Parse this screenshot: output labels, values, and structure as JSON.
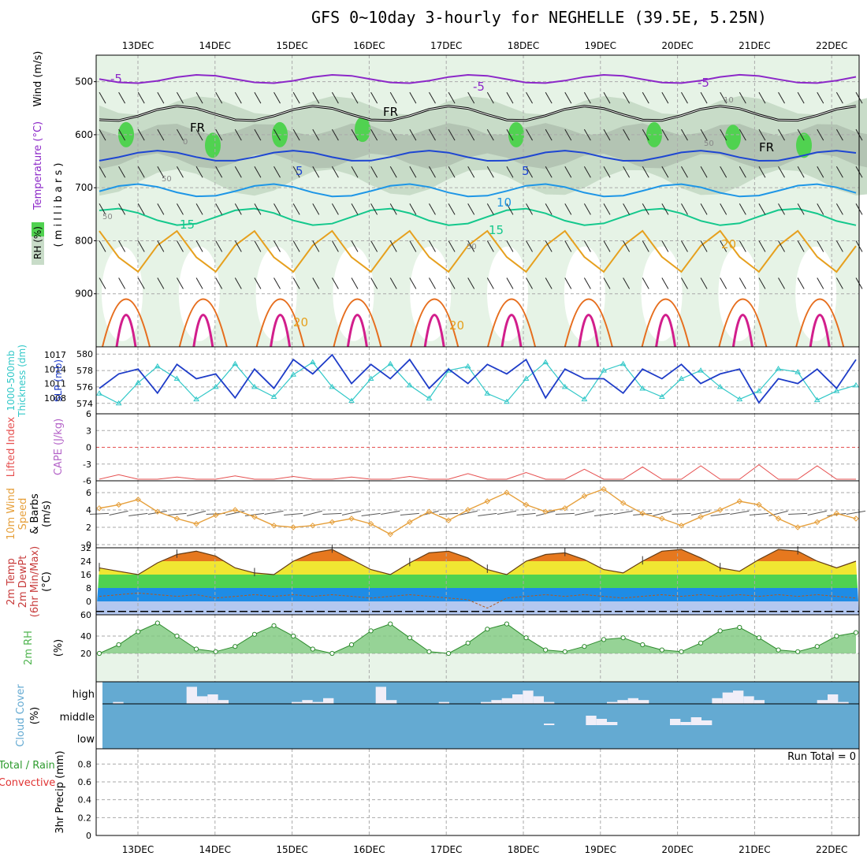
{
  "title": "GFS 0~10day 3-hourly for NEGHELLE (39.5E, 5.25N)",
  "colors": {
    "rh_light": "#e6f3e6",
    "rh_mid": "#c8dcc8",
    "rh_dark": "#a9b9a9",
    "rh_bright": "#50d250",
    "t_purple": "#8c28c8",
    "t_blue": "#1e46d2",
    "t_sky": "#1e96e6",
    "t_teal": "#14c88c",
    "t_gold": "#e6a01e",
    "t_orange": "#e66e1e",
    "t_magenta": "#d21e8c",
    "slp": "#1e3cc8",
    "thick": "#32c8c8",
    "li": "#e65050",
    "wind10": "#e6a03c",
    "rh2m": "#50b450",
    "cloud": "#64aad2",
    "grid": "#aaaaaa"
  },
  "chart_data": {
    "type": "meteogram",
    "time_axis": {
      "labels": [
        "13DEC",
        "14DEC",
        "15DEC",
        "16DEC",
        "17DEC",
        "18DEC",
        "19DEC",
        "20DEC",
        "21DEC",
        "22DEC"
      ]
    },
    "panels": [
      {
        "id": "upper_air",
        "ylabels": [
          "Wind (m/s)",
          "Temperature (°C)",
          "RH (%)",
          "( m i l l i b a r s )"
        ],
        "y_ticks": [
          500,
          600,
          700,
          800,
          900
        ],
        "ylim": [
          1000,
          450
        ],
        "contour_labels": [
          "-5",
          "-5",
          "-5",
          "5",
          "5",
          "10",
          "15",
          "15",
          "20",
          "20",
          "20",
          "FR",
          "FR",
          "FR",
          "50",
          "50",
          "50",
          "50",
          "0",
          "10"
        ],
        "temperature_isotherms": [
          {
            "name": "-5",
            "values": [
              -5,
              -5,
              -5,
              -5,
              -5,
              -5,
              -5,
              -5,
              -5,
              -5
            ]
          },
          {
            "name": "0",
            "values": [
              0,
              0,
              0,
              0,
              0,
              0,
              0,
              0,
              0,
              0
            ]
          },
          {
            "name": "5",
            "values": [
              5,
              5,
              5,
              5,
              5,
              5,
              5,
              5,
              5,
              5
            ]
          },
          {
            "name": "10",
            "values": [
              10,
              10,
              10,
              10,
              10,
              10,
              10,
              10,
              10,
              10
            ]
          },
          {
            "name": "15",
            "values": [
              15,
              15,
              15,
              15,
              15,
              15,
              15,
              15,
              15,
              15
            ]
          },
          {
            "name": "20",
            "values": [
              20,
              20,
              20,
              20,
              20,
              20,
              20,
              20,
              20,
              20
            ]
          }
        ]
      },
      {
        "id": "thickness_slp",
        "ylabels": [
          "1000-500mb",
          "Thickness (dm)",
          "SLP (mb)"
        ],
        "left_ticks": [
          574,
          576,
          578,
          580
        ],
        "right_ticks": [
          1008,
          1011,
          1014,
          1017
        ],
        "slp": [
          1010,
          1013,
          1014,
          1009,
          1015,
          1012,
          1013,
          1008,
          1014,
          1010,
          1016,
          1013,
          1017,
          1011,
          1015,
          1012,
          1016,
          1010,
          1014,
          1011,
          1015,
          1013,
          1016,
          1008,
          1014,
          1012,
          1012,
          1009,
          1014,
          1012,
          1015,
          1011,
          1013,
          1014,
          1007,
          1012,
          1011,
          1014,
          1010,
          1016
        ],
        "thickness": [
          575.2,
          574.0,
          576.5,
          578.5,
          577.0,
          574.5,
          576.0,
          578.8,
          576.0,
          574.8,
          577.5,
          579.0,
          576.0,
          574.3,
          577.0,
          578.8,
          576.2,
          574.6,
          578.0,
          578.5,
          575.2,
          574.2,
          577.0,
          579.0,
          576.0,
          574.5,
          578.0,
          578.8,
          575.8,
          574.8,
          577.0,
          578.0,
          576.0,
          574.5,
          575.5,
          578.2,
          577.8,
          574.4,
          575.5,
          576.2
        ]
      },
      {
        "id": "stability",
        "ylabels": [
          "Lifted Index",
          "CAPE (J/kg)"
        ],
        "y_ticks": [
          6,
          3,
          0,
          -3,
          -6
        ],
        "lifted_index": [
          6,
          5.2,
          6,
          6,
          5.6,
          6,
          6,
          5.4,
          6,
          6,
          5.5,
          6,
          6,
          5.6,
          6,
          6,
          5.5,
          6,
          6,
          5.0,
          6,
          6,
          4.8,
          6,
          6,
          4.2,
          6,
          6,
          3.8,
          6,
          6,
          3.6,
          6,
          6,
          3.4,
          6,
          6,
          3.6,
          6,
          6
        ]
      },
      {
        "id": "wind10m",
        "ylabels": [
          "10m Wind",
          "Speed",
          "& Barbs",
          "(m/s)"
        ],
        "y_ticks": [
          0,
          2,
          4,
          6
        ],
        "speed": [
          4.2,
          4.6,
          5.2,
          3.8,
          3.0,
          2.4,
          3.4,
          4.0,
          3.2,
          2.2,
          2.0,
          2.2,
          2.6,
          3.0,
          2.4,
          1.2,
          2.6,
          3.8,
          2.8,
          4.0,
          5.0,
          6.0,
          4.6,
          3.8,
          4.2,
          5.6,
          6.4,
          4.8,
          3.6,
          3.0,
          2.2,
          3.2,
          4.0,
          5.0,
          4.6,
          3.0,
          2.0,
          2.6,
          3.6,
          3.0
        ]
      },
      {
        "id": "temp2m",
        "ylabels": [
          "2m Temp",
          "2m DewPt",
          "(6hr Min/Max)",
          "(°C)"
        ],
        "y_ticks": [
          -8,
          0,
          8,
          16,
          24,
          32
        ],
        "temperature": [
          20,
          18,
          16,
          23,
          28,
          30,
          27,
          20,
          17,
          16,
          24,
          29,
          31,
          25,
          19,
          16,
          23,
          29,
          30,
          26,
          19,
          16,
          24,
          28,
          29,
          25,
          19,
          17,
          24,
          30,
          31,
          26,
          20,
          18,
          25,
          31,
          30,
          24,
          20,
          24
        ],
        "dewpoint": [
          3,
          4,
          5,
          4,
          3,
          4,
          2,
          3,
          4,
          3,
          4,
          3,
          4,
          3,
          2,
          3,
          4,
          3,
          2,
          1,
          -4,
          2,
          3,
          4,
          3,
          4,
          3,
          2,
          3,
          4,
          3,
          4,
          3,
          4,
          3,
          4,
          3,
          4,
          3,
          2
        ]
      },
      {
        "id": "rh2m",
        "ylabels": [
          "2m RH",
          "(%)"
        ],
        "y_ticks": [
          20,
          40
        ],
        "rh": [
          20,
          30,
          45,
          55,
          40,
          25,
          22,
          28,
          42,
          52,
          40,
          25,
          20,
          30,
          46,
          54,
          38,
          22,
          20,
          32,
          48,
          54,
          38,
          24,
          22,
          28,
          36,
          38,
          30,
          24,
          22,
          32,
          46,
          50,
          38,
          24,
          22,
          28,
          40,
          44
        ]
      },
      {
        "id": "cloud",
        "ylabels": [
          "Cloud Cover",
          "(%)"
        ],
        "levels": [
          "high",
          "middle",
          "low"
        ],
        "high": [
          0,
          10,
          0,
          0,
          0,
          0,
          0,
          0,
          90,
          40,
          50,
          20,
          0,
          0,
          0,
          0,
          0,
          0,
          10,
          20,
          10,
          30,
          0,
          0,
          0,
          0,
          90,
          20,
          0,
          0,
          0,
          0,
          10,
          0,
          0,
          0,
          10,
          20,
          30,
          50,
          70,
          40,
          10,
          0,
          0,
          0,
          0,
          0,
          10,
          20,
          30,
          20,
          0,
          0,
          0,
          0,
          0,
          0,
          30,
          60,
          70,
          40,
          20,
          0,
          0,
          0,
          0,
          0,
          20,
          50,
          10,
          0
        ],
        "middle": [
          0,
          0,
          0,
          0,
          0,
          0,
          0,
          0,
          0,
          0,
          0,
          0,
          0,
          0,
          0,
          0,
          0,
          0,
          0,
          0,
          0,
          0,
          0,
          0,
          0,
          0,
          0,
          0,
          0,
          0,
          0,
          0,
          0,
          0,
          0,
          0,
          0,
          0,
          0,
          0,
          0,
          0,
          10,
          0,
          0,
          0,
          60,
          40,
          20,
          0,
          0,
          0,
          0,
          0,
          40,
          20,
          50,
          30,
          0,
          0,
          0,
          0,
          0,
          0,
          0,
          0,
          0,
          0,
          0,
          0,
          0,
          0
        ]
      },
      {
        "id": "precip",
        "ylabels": [
          "Total / Rain",
          "Convective",
          "3hr Precip (mm)"
        ],
        "y_ticks": [
          "0",
          "0.2",
          "0.4",
          "0.6",
          "0.8"
        ],
        "run_total": "Run Total = 0",
        "values": [
          0,
          0,
          0,
          0,
          0,
          0,
          0,
          0,
          0,
          0
        ]
      }
    ]
  }
}
